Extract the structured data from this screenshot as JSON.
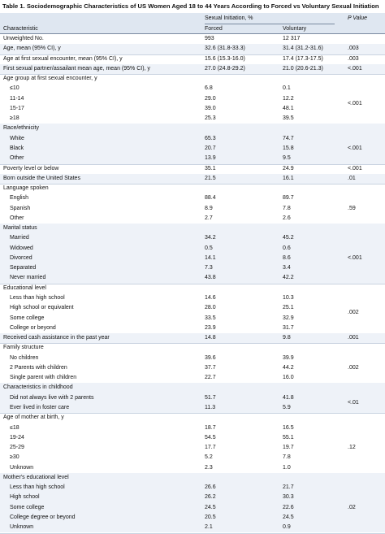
{
  "table": {
    "title": "Table 1. Sociodemographic Characteristics of US Women Aged 18 to 44 Years According to Forced vs Voluntary Sexual Initiation",
    "header": {
      "characteristic": "Characteristic",
      "group": "Sexual Initiation, %",
      "forced": "Forced",
      "voluntary": "Voluntary",
      "p_value": "P Value"
    },
    "rows": [
      {
        "label": "Unweighted No.",
        "forced": "993",
        "voluntary": "12 317"
      },
      {
        "label": "Age, mean (95% CI), y",
        "forced": "32.6 (31.8-33.3)",
        "voluntary": "31.4 (31.2-31.6)",
        "p_value": ".003"
      },
      {
        "label": "Age at first sexual encounter, mean (95% CI), y",
        "forced": "15.6 (15.3-16.0)",
        "voluntary": "17.4 (17.3-17.5)",
        "p_value": ".003"
      },
      {
        "label": "First sexual partner/assailant mean age, mean (95% CI), y",
        "forced": "27.0 (24.8-29.2)",
        "voluntary": "21.0 (20.6-21.3)",
        "p_value": "<.001"
      },
      {
        "label": "Age group at first sexual encounter, y",
        "p_value": "<.001",
        "rows": [
          {
            "label": "≤10",
            "forced": "6.8",
            "voluntary": "0.1"
          },
          {
            "label": "11-14",
            "forced": "29.0",
            "voluntary": "12.2"
          },
          {
            "label": "15-17",
            "forced": "39.0",
            "voluntary": "48.1"
          },
          {
            "label": "≥18",
            "forced": "25.3",
            "voluntary": "39.5"
          }
        ]
      },
      {
        "label": "Race/ethnicity",
        "p_value": "<.001",
        "rows": [
          {
            "label": "White",
            "forced": "65.3",
            "voluntary": "74.7"
          },
          {
            "label": "Black",
            "forced": "20.7",
            "voluntary": "15.8"
          },
          {
            "label": "Other",
            "forced": "13.9",
            "voluntary": "9.5"
          }
        ]
      },
      {
        "label": "Poverty level or below",
        "forced": "35.1",
        "voluntary": "24.9",
        "p_value": "<.001"
      },
      {
        "label": "Born outside the United States",
        "forced": "21.5",
        "voluntary": "16.1",
        "p_value": ".01"
      },
      {
        "label": "Language spoken",
        "p_value": ".59",
        "rows": [
          {
            "label": "English",
            "forced": "88.4",
            "voluntary": "89.7"
          },
          {
            "label": "Spanish",
            "forced": "8.9",
            "voluntary": "7.8"
          },
          {
            "label": "Other",
            "forced": "2.7",
            "voluntary": "2.6"
          }
        ]
      },
      {
        "label": "Marital status",
        "p_value": "<.001",
        "rows": [
          {
            "label": "Married",
            "forced": "34.2",
            "voluntary": "45.2"
          },
          {
            "label": "Widowed",
            "forced": "0.5",
            "voluntary": "0.6"
          },
          {
            "label": "Divorced",
            "forced": "14.1",
            "voluntary": "8.6"
          },
          {
            "label": "Separated",
            "forced": "7.3",
            "voluntary": "3.4"
          },
          {
            "label": "Never married",
            "forced": "43.8",
            "voluntary": "42.2"
          }
        ]
      },
      {
        "label": "Educational level",
        "p_value": ".002",
        "rows": [
          {
            "label": "Less than high school",
            "forced": "14.6",
            "voluntary": "10.3"
          },
          {
            "label": "High school or equivalent",
            "forced": "28.0",
            "voluntary": "25.1"
          },
          {
            "label": "Some college",
            "forced": "33.5",
            "voluntary": "32.9"
          },
          {
            "label": "College or beyond",
            "forced": "23.9",
            "voluntary": "31.7"
          }
        ]
      },
      {
        "label": "Received cash assistance in the past year",
        "forced": "14.8",
        "voluntary": "9.8",
        "p_value": ".001"
      },
      {
        "label": "Family structure",
        "p_value": ".002",
        "rows": [
          {
            "label": "No children",
            "forced": "39.6",
            "voluntary": "39.9"
          },
          {
            "label": "2 Parents with children",
            "forced": "37.7",
            "voluntary": "44.2"
          },
          {
            "label": "Single parent with children",
            "forced": "22.7",
            "voluntary": "16.0"
          }
        ]
      },
      {
        "label": "Characteristics in childhood",
        "p_value": "<.01",
        "rows": [
          {
            "label": "Did not always live with 2 parents",
            "forced": "51.7",
            "voluntary": "41.8"
          },
          {
            "label": "Ever lived in foster care",
            "forced": "11.3",
            "voluntary": "5.9"
          }
        ]
      },
      {
        "label": "Age of mother at birth, y",
        "p_value": ".12",
        "rows": [
          {
            "label": "≤18",
            "forced": "18.7",
            "voluntary": "16.5"
          },
          {
            "label": "19-24",
            "forced": "54.5",
            "voluntary": "55.1"
          },
          {
            "label": "25-29",
            "forced": "17.7",
            "voluntary": "19.7"
          },
          {
            "label": "≥30",
            "forced": "5.2",
            "voluntary": "7.8"
          },
          {
            "label": "Unknown",
            "forced": "2.3",
            "voluntary": "1.0"
          }
        ]
      },
      {
        "label": "Mother's educational level",
        "p_value": ".02",
        "rows": [
          {
            "label": "Less than high school",
            "forced": "26.6",
            "voluntary": "21.7"
          },
          {
            "label": "High school",
            "forced": "26.2",
            "voluntary": "30.3"
          },
          {
            "label": "Some college",
            "forced": "24.5",
            "voluntary": "22.6"
          },
          {
            "label": "College degree or beyond",
            "forced": "20.5",
            "voluntary": "24.5"
          },
          {
            "label": "Unknown",
            "forced": "2.1",
            "voluntary": "0.9"
          }
        ]
      }
    ]
  }
}
